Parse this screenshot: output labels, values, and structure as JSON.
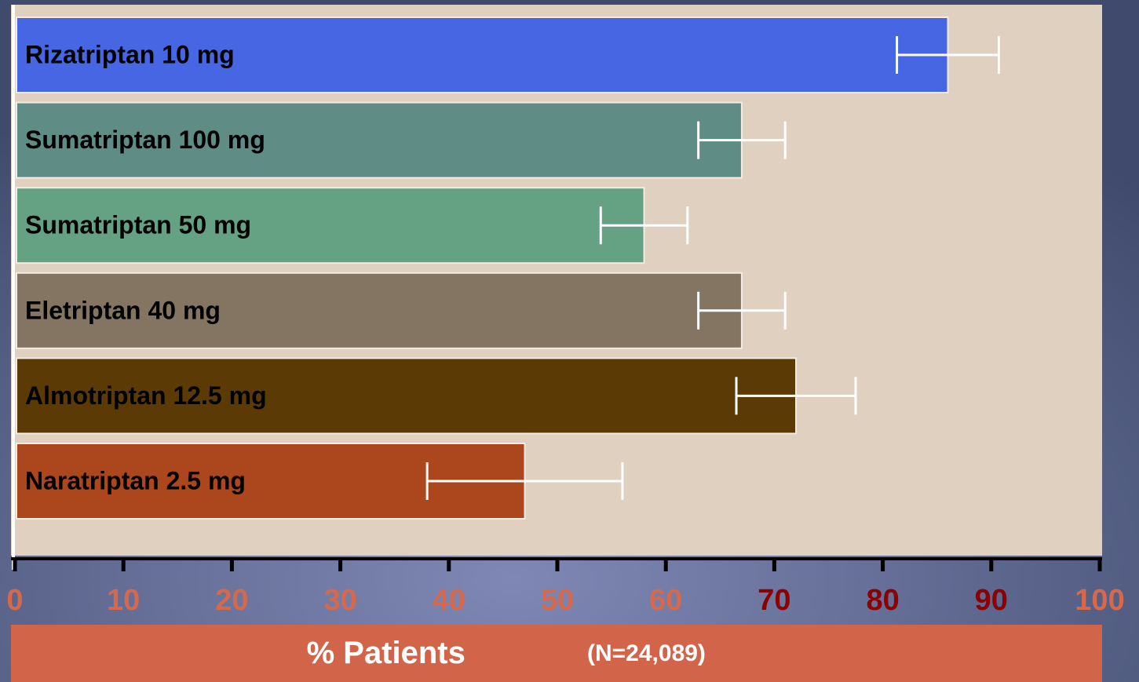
{
  "chart_data": {
    "type": "hbar",
    "categories": [
      "Rizatriptan 10 mg",
      "Sumatriptan 100 mg",
      "Sumatriptan 50 mg",
      "Eletriptan 40 mg",
      "Almotriptan 12.5 mg",
      "Naratriptan 2.5 mg"
    ],
    "values": [
      86,
      67,
      58,
      67,
      72,
      47
    ],
    "errors": [
      4.7,
      4,
      4,
      4,
      5.5,
      9
    ],
    "colors": [
      "#4766e3",
      "#5f8c85",
      "#65a283",
      "#837562",
      "#5b3a06",
      "#ab461d"
    ],
    "error_color": "#ffffff",
    "xlim": [
      0,
      100
    ],
    "xticks": [
      0,
      10,
      20,
      30,
      40,
      50,
      60,
      70,
      80,
      90,
      100
    ],
    "xtick_colors": [
      "#d6694c",
      "#d6694c",
      "#d6694c",
      "#d6694c",
      "#d6694c",
      "#d6694c",
      "#d6694c",
      "#8b0000",
      "#8b0000",
      "#8b0000",
      "#d6694c"
    ],
    "xlabel": "% Patients",
    "xlabel_note": "(N=24,089)"
  }
}
